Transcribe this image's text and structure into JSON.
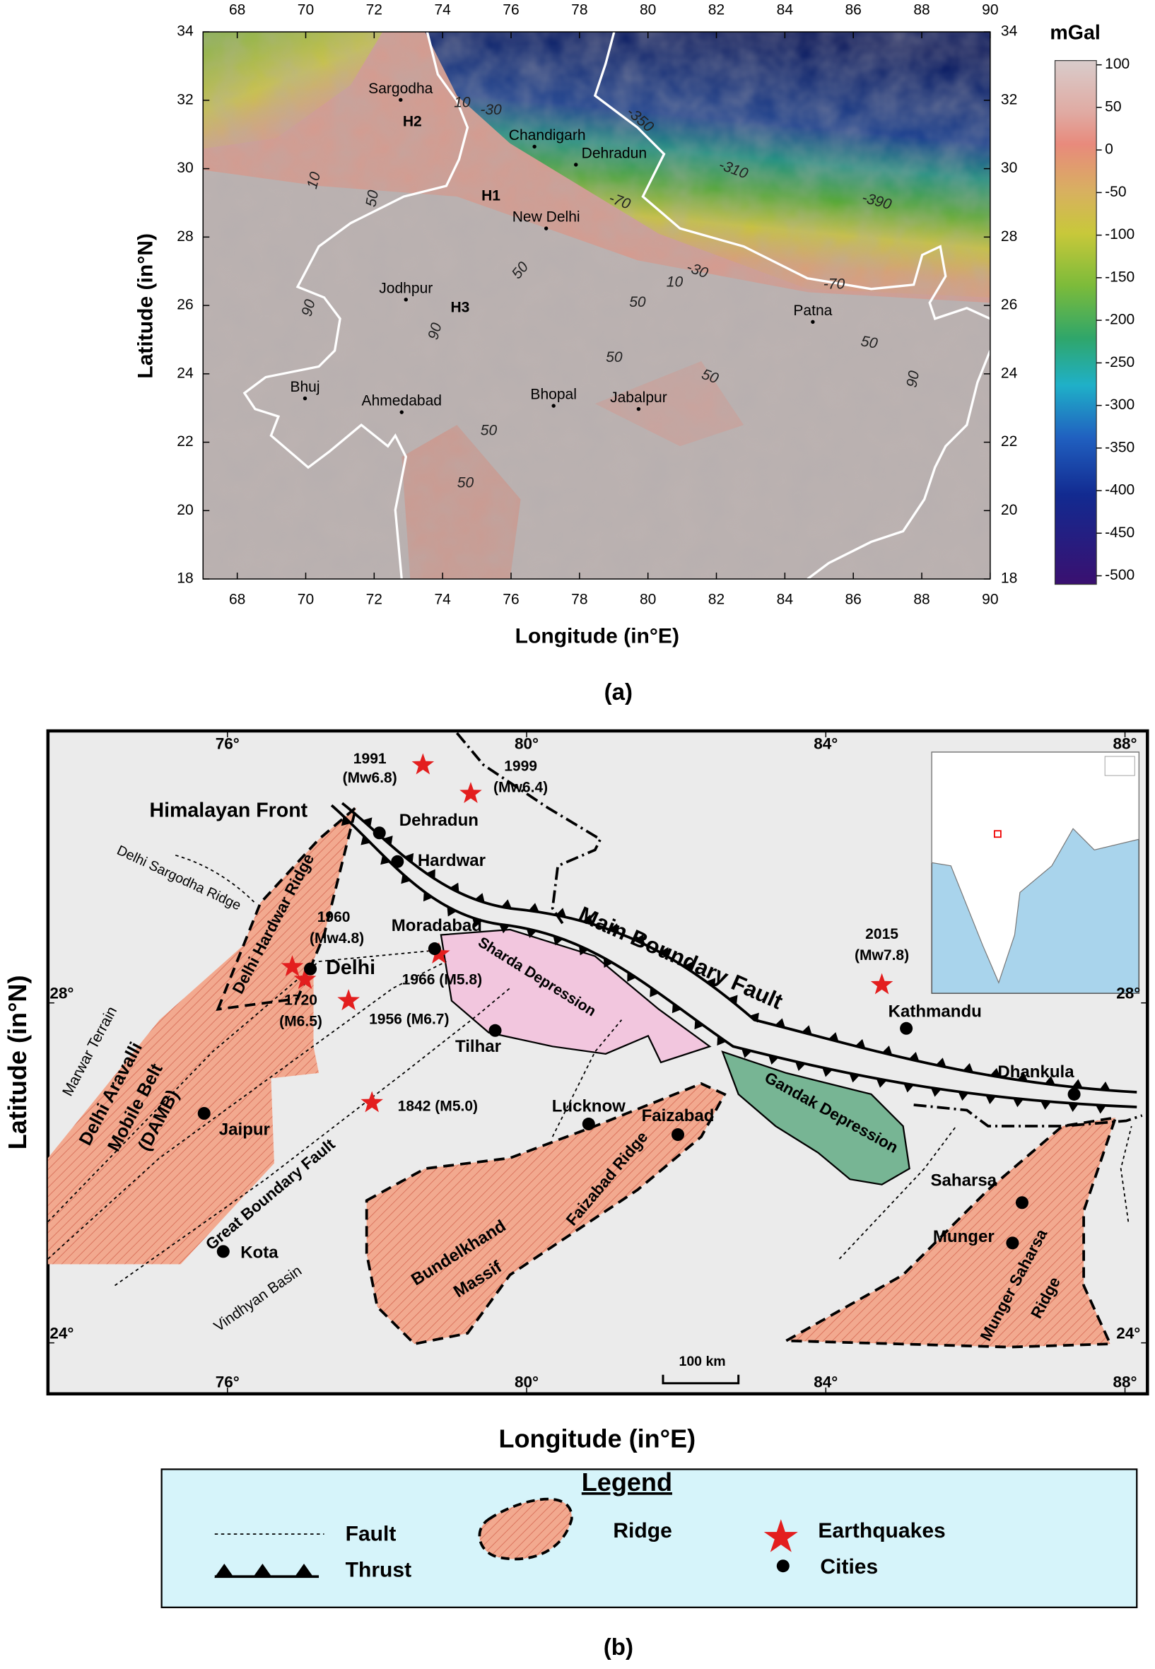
{
  "panel_a": {
    "x_label": "Longitude (in°E)",
    "y_label": "Latitude (in°N)",
    "caption": "(a)",
    "xlim": [
      67,
      90
    ],
    "ylim": [
      18,
      34
    ],
    "xticks": [
      68,
      70,
      72,
      74,
      76,
      78,
      80,
      82,
      84,
      86,
      88,
      90
    ],
    "yticks": [
      18,
      20,
      22,
      24,
      26,
      28,
      30,
      32,
      34
    ],
    "colorbar": {
      "unit": "mGal",
      "lim": [
        -510,
        105
      ],
      "ticks": [
        100,
        50,
        0,
        -50,
        -100,
        -150,
        -200,
        -250,
        -300,
        -350,
        -400,
        -450,
        -500
      ]
    },
    "places": [
      "Sargodha",
      "H2",
      "Chandigarh",
      "Dehradun",
      "H1",
      "New Delhi",
      "Jodhpur",
      "H3",
      "Patna",
      "Bhuj",
      "Ahmedabad",
      "Bhopal",
      "Jabalpur"
    ],
    "contour_labels": [
      10,
      -30,
      10,
      50,
      -350,
      -310,
      -390,
      -70,
      10,
      -30,
      -70,
      50,
      50,
      50,
      50,
      50,
      90,
      90,
      90,
      50,
      50
    ]
  },
  "panel_b": {
    "x_label": "Longitude (in°E)",
    "y_label": "Latitude (in°N)",
    "caption": "(b)",
    "xlim": [
      73.6,
      88.3
    ],
    "ylim": [
      23.4,
      31.2
    ],
    "xticks": [
      {
        "value": 76,
        "label": "76°"
      },
      {
        "value": 80,
        "label": "80°"
      },
      {
        "value": 84,
        "label": "84°"
      },
      {
        "value": 88,
        "label": "88°"
      }
    ],
    "yticks": [
      {
        "value": 24,
        "label": "24°"
      },
      {
        "value": 28,
        "label": "28°"
      }
    ],
    "labels": [
      "1991",
      "(Mw6.8)",
      "1999",
      "(Mw6.4)",
      "Himalayan Front",
      "Dehradun",
      "Hardwar",
      "Delhi Sargodha Ridge",
      "Delhi Hardwar Ridge",
      "1960",
      "(Mw4.8)",
      "Delhi",
      "1720",
      "(M6.5)",
      "Moradabad",
      "1966 (M5.8)",
      "1956 (M6.7)",
      "Sharda Depression",
      "Main Boundary Fault",
      "2015",
      "(Mw7.8)",
      "Kathmandu",
      "Tilhar",
      "Marwar Terrain",
      "Delhi Aravalli",
      "Mobile Belt",
      "(DAMB)",
      "Jaipur",
      "1842 (M5.0)",
      "Lucknow",
      "Faizabad",
      "Gandak Depression",
      "Dhankula",
      "Great Boundary Fault",
      "Faizabad Ridge",
      "Bundelkhand",
      "Massif",
      "Saharsa",
      "Munger",
      "Munger Saharsa",
      "Ridge",
      "Kota",
      "Vindhyan Basin"
    ],
    "scale_bar": "100 km",
    "legend": {
      "title": "Legend",
      "items": [
        "Fault",
        "Thrust",
        "Ridge",
        "Earthquakes",
        "Cities"
      ]
    }
  }
}
